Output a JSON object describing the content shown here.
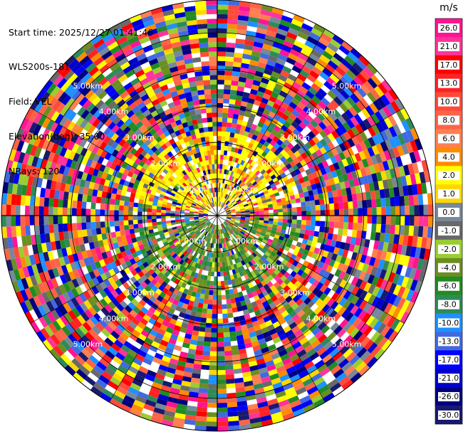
{
  "header": {
    "start_time": "Start time: 2025/12/27 01:41:46",
    "instrument": "WLS200s-181",
    "field": "Field: VEL",
    "elevation": "Elevation(deg): 35.00",
    "nrays": "NRays: 120"
  },
  "chart_data": {
    "type": "heatmap",
    "projection": "polar-ppi",
    "field": "VEL",
    "nrays": 120,
    "elevation_deg": 35.0,
    "range_rings_km": [
      1.0,
      2.0,
      3.0,
      4.0,
      5.0
    ],
    "ring_labels": [
      "1.00km",
      "2.00km",
      "3.00km",
      "4.00km",
      "5.00km"
    ],
    "max_range_km": 5.9,
    "colorbar": {
      "unit": "m/s",
      "ticks": [
        "26.0",
        "21.0",
        "17.0",
        "13.0",
        "10.0",
        "8.0",
        "6.0",
        "4.0",
        "2.0",
        "1.0",
        "0.0",
        "-1.0",
        "-2.0",
        "-4.0",
        "-6.0",
        "-8.0",
        "-10.0",
        "-13.0",
        "-17.0",
        "-21.0",
        "-26.0",
        "-30.0"
      ],
      "bins": [
        {
          "min": 26,
          "max": 30,
          "color": "#ff1493"
        },
        {
          "min": 21,
          "max": 26,
          "color": "#ff3399"
        },
        {
          "min": 17,
          "max": 21,
          "color": "#ff0000"
        },
        {
          "min": 13,
          "max": 17,
          "color": "#ff2222"
        },
        {
          "min": 10,
          "max": 13,
          "color": "#ff4a3a"
        },
        {
          "min": 8,
          "max": 10,
          "color": "#ff6347"
        },
        {
          "min": 6,
          "max": 8,
          "color": "#ff7f50"
        },
        {
          "min": 4,
          "max": 6,
          "color": "#ff8c00"
        },
        {
          "min": 2,
          "max": 4,
          "color": "#ffff00"
        },
        {
          "min": 1,
          "max": 2,
          "color": "#ffd700"
        },
        {
          "min": 0,
          "max": 1,
          "color": "#778899"
        },
        {
          "min": -1,
          "max": 0,
          "color": "#696969"
        },
        {
          "min": -2,
          "max": -1,
          "color": "#9acd32"
        },
        {
          "min": -4,
          "max": -2,
          "color": "#6b8e23"
        },
        {
          "min": -6,
          "max": -4,
          "color": "#228b22"
        },
        {
          "min": -8,
          "max": -6,
          "color": "#2e8b57"
        },
        {
          "min": -10,
          "max": -8,
          "color": "#1e90ff"
        },
        {
          "min": -13,
          "max": -10,
          "color": "#4169e1"
        },
        {
          "min": -17,
          "max": -13,
          "color": "#0000ff"
        },
        {
          "min": -21,
          "max": -17,
          "color": "#0000cd"
        },
        {
          "min": -26,
          "max": -21,
          "color": "#000080"
        },
        {
          "min": -30,
          "max": -26,
          "color": "#191970"
        }
      ]
    },
    "near_field": {
      "range_km": 2.3,
      "dominant_sector_north": "yellow (1.0 to 4.0 m/s)",
      "dominant_sector_south": "green (-1.0 to -8.0 m/s)",
      "beyond_range": "noisy, all bins"
    }
  }
}
